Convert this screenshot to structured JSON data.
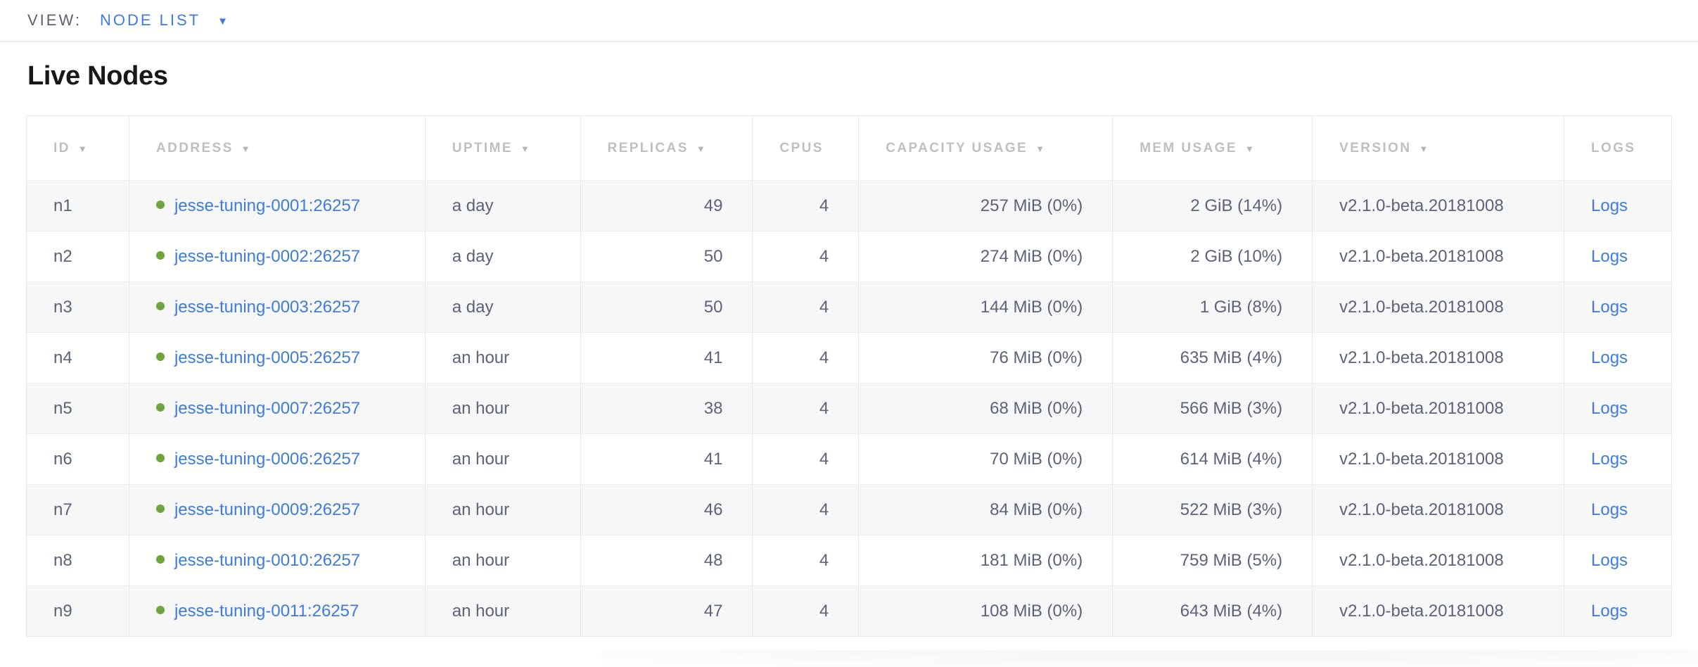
{
  "view_bar": {
    "label": "VIEW:",
    "selected": "NODE LIST"
  },
  "page": {
    "title": "Live Nodes"
  },
  "icons": {
    "caret_down": "▼",
    "sort_desc": "▼",
    "live_dot": "●"
  },
  "colors": {
    "accent_blue": "#3f7cd9",
    "live_green": "#6fa43d",
    "header_gray": "#bfbfc2",
    "cell_text": "#5a6377",
    "row_stripe": "#f7f7f8",
    "table_border": "#e9e9e9"
  },
  "table": {
    "columns": [
      {
        "key": "id",
        "label": "ID",
        "sortable": true
      },
      {
        "key": "address",
        "label": "ADDRESS",
        "sortable": true
      },
      {
        "key": "uptime",
        "label": "UPTIME",
        "sortable": true
      },
      {
        "key": "replicas",
        "label": "REPLICAS",
        "sortable": true
      },
      {
        "key": "cpus",
        "label": "CPUS",
        "sortable": false
      },
      {
        "key": "capacity-usage",
        "label": "CAPACITY USAGE",
        "sortable": true
      },
      {
        "key": "mem-usage",
        "label": "MEM USAGE",
        "sortable": true
      },
      {
        "key": "version",
        "label": "VERSION",
        "sortable": true
      },
      {
        "key": "logs",
        "label": "LOGS",
        "sortable": false
      }
    ],
    "rows": [
      {
        "id": "n1",
        "address": "jesse-tuning-0001:26257",
        "uptime": "a day",
        "replicas": "49",
        "cpus": "4",
        "capacity_usage": "257 MiB (0%)",
        "mem_usage": "2 GiB (14%)",
        "version": "v2.1.0-beta.20181008",
        "logs_label": "Logs"
      },
      {
        "id": "n2",
        "address": "jesse-tuning-0002:26257",
        "uptime": "a day",
        "replicas": "50",
        "cpus": "4",
        "capacity_usage": "274 MiB (0%)",
        "mem_usage": "2 GiB (10%)",
        "version": "v2.1.0-beta.20181008",
        "logs_label": "Logs"
      },
      {
        "id": "n3",
        "address": "jesse-tuning-0003:26257",
        "uptime": "a day",
        "replicas": "50",
        "cpus": "4",
        "capacity_usage": "144 MiB (0%)",
        "mem_usage": "1 GiB (8%)",
        "version": "v2.1.0-beta.20181008",
        "logs_label": "Logs"
      },
      {
        "id": "n4",
        "address": "jesse-tuning-0005:26257",
        "uptime": "an hour",
        "replicas": "41",
        "cpus": "4",
        "capacity_usage": "76 MiB (0%)",
        "mem_usage": "635 MiB (4%)",
        "version": "v2.1.0-beta.20181008",
        "logs_label": "Logs"
      },
      {
        "id": "n5",
        "address": "jesse-tuning-0007:26257",
        "uptime": "an hour",
        "replicas": "38",
        "cpus": "4",
        "capacity_usage": "68 MiB (0%)",
        "mem_usage": "566 MiB (3%)",
        "version": "v2.1.0-beta.20181008",
        "logs_label": "Logs"
      },
      {
        "id": "n6",
        "address": "jesse-tuning-0006:26257",
        "uptime": "an hour",
        "replicas": "41",
        "cpus": "4",
        "capacity_usage": "70 MiB (0%)",
        "mem_usage": "614 MiB (4%)",
        "version": "v2.1.0-beta.20181008",
        "logs_label": "Logs"
      },
      {
        "id": "n7",
        "address": "jesse-tuning-0009:26257",
        "uptime": "an hour",
        "replicas": "46",
        "cpus": "4",
        "capacity_usage": "84 MiB (0%)",
        "mem_usage": "522 MiB (3%)",
        "version": "v2.1.0-beta.20181008",
        "logs_label": "Logs"
      },
      {
        "id": "n8",
        "address": "jesse-tuning-0010:26257",
        "uptime": "an hour",
        "replicas": "48",
        "cpus": "4",
        "capacity_usage": "181 MiB (0%)",
        "mem_usage": "759 MiB (5%)",
        "version": "v2.1.0-beta.20181008",
        "logs_label": "Logs"
      },
      {
        "id": "n9",
        "address": "jesse-tuning-0011:26257",
        "uptime": "an hour",
        "replicas": "47",
        "cpus": "4",
        "capacity_usage": "108 MiB (0%)",
        "mem_usage": "643 MiB (4%)",
        "version": "v2.1.0-beta.20181008",
        "logs_label": "Logs"
      }
    ]
  }
}
